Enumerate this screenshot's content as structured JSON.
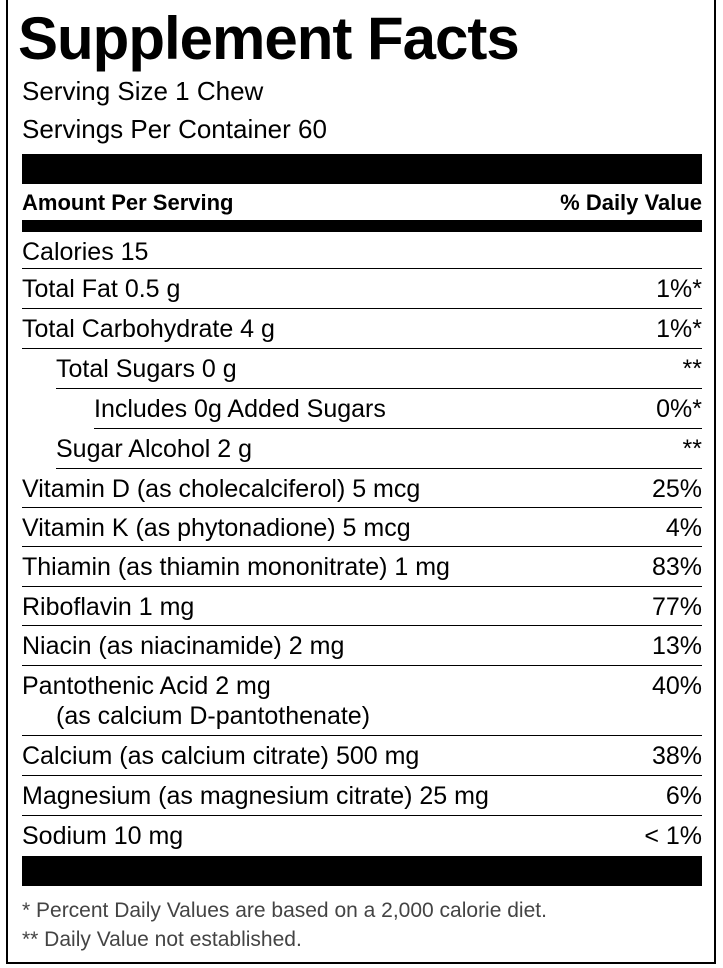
{
  "title": "Supplement Facts",
  "serving_size": "Serving Size 1 Chew",
  "servings_per_container": "Servings Per Container 60",
  "header": {
    "amount": "Amount Per Serving",
    "dv": "% Daily Value"
  },
  "rows": [
    {
      "label": "Calories  15",
      "value": ""
    },
    {
      "label": "Total Fat  0.5 g",
      "value": "1%*"
    },
    {
      "label": "Total Carbohydrate  4 g",
      "value": "1%*"
    },
    {
      "label": "Total Sugars  0 g",
      "value": "**"
    },
    {
      "label": "Includes 0g Added Sugars",
      "value": "0%*"
    },
    {
      "label": "Sugar Alcohol 2 g",
      "value": "**"
    },
    {
      "label": "Vitamin D (as cholecalciferol)  5 mcg",
      "value": "25%"
    },
    {
      "label": "Vitamin K (as phytonadione)  5 mcg",
      "value": "4%"
    },
    {
      "label": "Thiamin (as thiamin mononitrate)  1 mg",
      "value": "83%"
    },
    {
      "label": "Riboflavin  1 mg",
      "value": "77%"
    },
    {
      "label": "Niacin (as niacinamide)  2 mg",
      "value": "13%"
    },
    {
      "label": "Pantothenic Acid  2 mg",
      "sublabel": "(as calcium D-pantothenate)",
      "value": "40%"
    },
    {
      "label": "Calcium (as calcium citrate)  500 mg",
      "value": "38%"
    },
    {
      "label": "Magnesium (as magnesium citrate)  25 mg",
      "value": "6%"
    },
    {
      "label": "Sodium  10 mg",
      "value": "< 1%"
    }
  ],
  "footnotes": [
    "* Percent Daily Values are based on a 2,000 calorie diet.",
    "** Daily Value not established."
  ]
}
